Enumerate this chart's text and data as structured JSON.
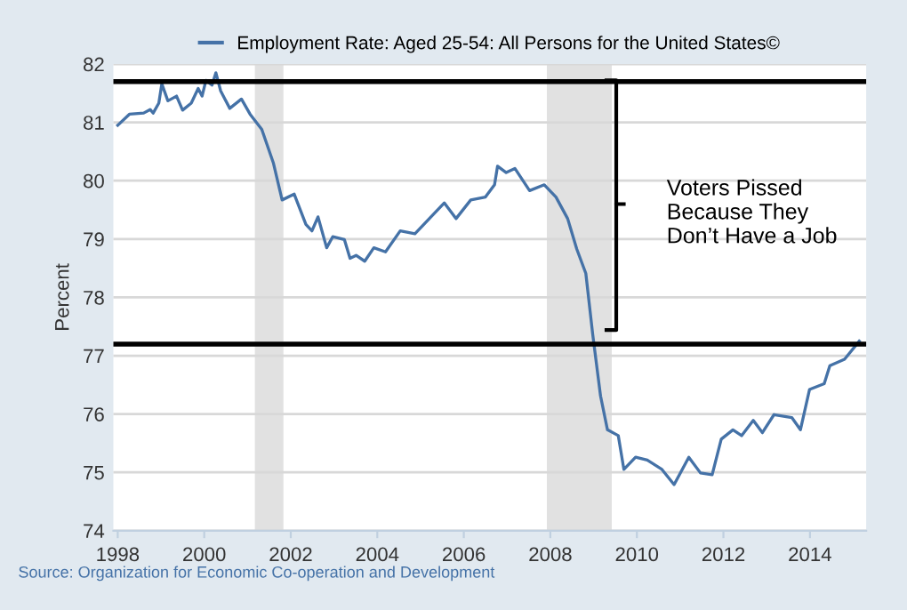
{
  "chart_data": {
    "type": "line",
    "ylabel": "Percent",
    "series": [
      {
        "name": "Employment Rate: Aged 25-54: All Persons for the United States©",
        "color": "#4572a7",
        "x": [
          1998.0,
          1998.27,
          1998.6,
          1998.75,
          1998.82,
          1998.95,
          1999.02,
          1999.16,
          1999.36,
          1999.5,
          1999.7,
          1999.86,
          1999.95,
          2000.04,
          2000.18,
          2000.27,
          2000.38,
          2000.59,
          2000.86,
          2001.06,
          2001.33,
          2001.6,
          2001.8,
          2002.08,
          2002.35,
          2002.49,
          2002.63,
          2002.83,
          2002.97,
          2003.24,
          2003.37,
          2003.51,
          2003.71,
          2003.92,
          2004.19,
          2004.53,
          2004.87,
          2005.28,
          2005.55,
          2005.82,
          2006.16,
          2006.5,
          2006.71,
          2006.78,
          2006.98,
          2007.18,
          2007.52,
          2007.86,
          2008.13,
          2008.4,
          2008.61,
          2008.82,
          2008.98,
          2009.16,
          2009.32,
          2009.57,
          2009.7,
          2009.97,
          2010.24,
          2010.58,
          2010.86,
          2011.2,
          2011.47,
          2011.74,
          2011.95,
          2012.22,
          2012.42,
          2012.69,
          2012.9,
          2013.17,
          2013.58,
          2013.78,
          2013.99,
          2014.33,
          2014.46,
          2014.8,
          2015.14
        ],
        "values": [
          80.95,
          81.14,
          81.16,
          81.22,
          81.16,
          81.33,
          81.66,
          81.37,
          81.45,
          81.21,
          81.33,
          81.58,
          81.45,
          81.72,
          81.64,
          81.85,
          81.54,
          81.24,
          81.4,
          81.14,
          80.88,
          80.3,
          79.67,
          79.77,
          79.25,
          79.14,
          79.38,
          78.85,
          79.04,
          78.99,
          78.67,
          78.72,
          78.62,
          78.85,
          78.78,
          79.14,
          79.09,
          79.41,
          79.62,
          79.35,
          79.67,
          79.72,
          79.93,
          80.25,
          80.14,
          80.21,
          79.83,
          79.93,
          79.72,
          79.35,
          78.83,
          78.41,
          77.36,
          76.31,
          75.73,
          75.63,
          75.05,
          75.26,
          75.21,
          75.05,
          74.79,
          75.26,
          74.99,
          74.96,
          75.57,
          75.73,
          75.63,
          75.89,
          75.68,
          75.99,
          75.94,
          75.73,
          76.42,
          76.52,
          76.83,
          76.94,
          77.25
        ]
      }
    ],
    "xlim": [
      1997.9,
      2015.3
    ],
    "xticks": [
      1998,
      2000,
      2002,
      2004,
      2006,
      2008,
      2010,
      2012,
      2014
    ],
    "ylim": [
      74,
      82
    ],
    "yticks": [
      74,
      75,
      76,
      77,
      78,
      79,
      80,
      81,
      82
    ],
    "grid": "y",
    "legend": "top",
    "marker": "none",
    "line_style": "solid",
    "ref_lines": [
      {
        "axis": "y",
        "value": 81.7,
        "color": "#000000"
      },
      {
        "axis": "y",
        "value": 77.2,
        "color": "#000000"
      }
    ],
    "bands": [
      {
        "axis": "x",
        "from": 2001.17,
        "to": 2001.83,
        "color": "#e1e1e1"
      },
      {
        "axis": "x",
        "from": 2007.92,
        "to": 2009.42,
        "color": "#e1e1e1"
      }
    ],
    "annotations": [
      "Voters Pissed\nBecause They\nDon’t Have a Job",
      "Source: Organization for Economic Co-operation and Development"
    ]
  }
}
